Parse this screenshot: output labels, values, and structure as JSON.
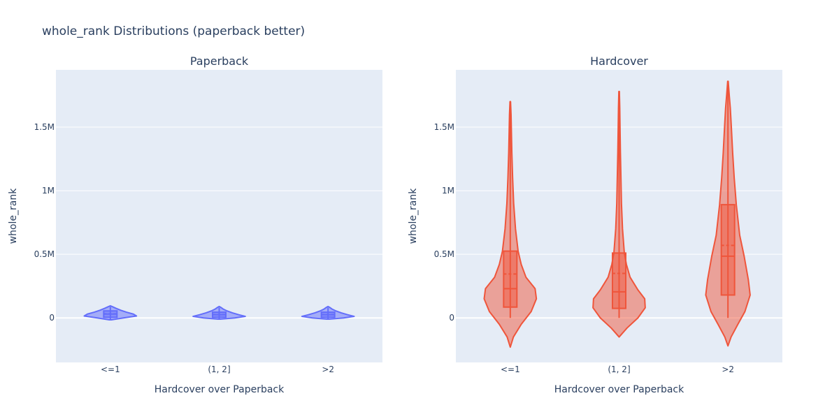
{
  "title": "whole_rank Distributions (paperback better)",
  "colors": {
    "plot_bg": "#e5ecf6",
    "grid": "#ffffff",
    "text": "#2a3f5f",
    "paperback": "#636efa",
    "hardcover": "#ef553b"
  },
  "chart_data": [
    {
      "type": "violin",
      "title": "Paperback",
      "xlabel": "Hardcover over Paperback",
      "ylabel": "whole_rank",
      "categories": [
        "<=1",
        "(1, 2]",
        ">2"
      ],
      "ylim": [
        -350000,
        1950000
      ],
      "yticks": [
        0,
        500000,
        1000000,
        1500000
      ],
      "ytick_labels": [
        "0",
        "0.5M",
        "1M",
        "1.5M"
      ],
      "color": "#636efa",
      "violins": [
        {
          "category": "<=1",
          "min": -15000,
          "max": 95000,
          "q1": 5000,
          "median": 30000,
          "q3": 55000,
          "mean": 32000,
          "whisker_low": -10000,
          "whisker_high": 85000,
          "profile": [
            [
              -15000,
              0.04
            ],
            [
              0,
              0.5
            ],
            [
              15000,
              1
            ],
            [
              30000,
              0.88
            ],
            [
              45000,
              0.62
            ],
            [
              60000,
              0.4
            ],
            [
              75000,
              0.22
            ],
            [
              88000,
              0.08
            ],
            [
              95000,
              0
            ]
          ]
        },
        {
          "category": "(1, 2]",
          "min": -10000,
          "max": 90000,
          "q1": 5000,
          "median": 25000,
          "q3": 45000,
          "mean": 27000,
          "whisker_low": -5000,
          "whisker_high": 80000,
          "profile": [
            [
              -10000,
              0.04
            ],
            [
              0,
              0.6
            ],
            [
              12000,
              1
            ],
            [
              25000,
              0.75
            ],
            [
              40000,
              0.5
            ],
            [
              55000,
              0.3
            ],
            [
              70000,
              0.15
            ],
            [
              83000,
              0.06
            ],
            [
              90000,
              0
            ]
          ]
        },
        {
          "category": ">2",
          "min": -10000,
          "max": 90000,
          "q1": 5000,
          "median": 25000,
          "q3": 45000,
          "mean": 27000,
          "whisker_low": -5000,
          "whisker_high": 80000,
          "profile": [
            [
              -10000,
              0.04
            ],
            [
              0,
              0.6
            ],
            [
              12000,
              1
            ],
            [
              25000,
              0.75
            ],
            [
              40000,
              0.5
            ],
            [
              55000,
              0.3
            ],
            [
              70000,
              0.15
            ],
            [
              83000,
              0.06
            ],
            [
              90000,
              0
            ]
          ]
        }
      ]
    },
    {
      "type": "violin",
      "title": "Hardcover",
      "xlabel": "Hardcover over Paperback",
      "ylabel": "whole_rank",
      "categories": [
        "<=1",
        "(1, 2]",
        ">2"
      ],
      "ylim": [
        -350000,
        1950000
      ],
      "yticks": [
        0,
        500000,
        1000000,
        1500000
      ],
      "ytick_labels": [
        "0",
        "0.5M",
        "1M",
        "1.5M"
      ],
      "color": "#ef553b",
      "violins": [
        {
          "category": "<=1",
          "min": -230000,
          "max": 1700000,
          "q1": 85000,
          "median": 230000,
          "q3": 525000,
          "mean": 345000,
          "whisker_low": 0,
          "whisker_high": 1700000,
          "profile": [
            [
              -230000,
              0
            ],
            [
              -150000,
              0.12
            ],
            [
              -50000,
              0.42
            ],
            [
              50000,
              0.8
            ],
            [
              150000,
              1
            ],
            [
              230000,
              0.95
            ],
            [
              320000,
              0.6
            ],
            [
              420000,
              0.42
            ],
            [
              525000,
              0.3
            ],
            [
              700000,
              0.2
            ],
            [
              900000,
              0.13
            ],
            [
              1100000,
              0.09
            ],
            [
              1300000,
              0.06
            ],
            [
              1500000,
              0.04
            ],
            [
              1600000,
              0.03
            ],
            [
              1700000,
              0.01
            ]
          ]
        },
        {
          "category": "(1, 2]",
          "min": -150000,
          "max": 1780000,
          "q1": 75000,
          "median": 205000,
          "q3": 510000,
          "mean": 350000,
          "whisker_low": 0,
          "whisker_high": 1780000,
          "profile": [
            [
              -150000,
              0
            ],
            [
              -80000,
              0.3
            ],
            [
              0,
              0.72
            ],
            [
              80000,
              1
            ],
            [
              150000,
              0.98
            ],
            [
              220000,
              0.72
            ],
            [
              320000,
              0.42
            ],
            [
              420000,
              0.28
            ],
            [
              510000,
              0.2
            ],
            [
              700000,
              0.13
            ],
            [
              900000,
              0.09
            ],
            [
              1100000,
              0.07
            ],
            [
              1300000,
              0.05
            ],
            [
              1500000,
              0.035
            ],
            [
              1650000,
              0.025
            ],
            [
              1780000,
              0.01
            ]
          ]
        },
        {
          "category": ">2",
          "min": -220000,
          "max": 1860000,
          "q1": 180000,
          "median": 485000,
          "q3": 890000,
          "mean": 570000,
          "whisker_low": 0,
          "whisker_high": 1860000,
          "profile": [
            [
              -220000,
              0
            ],
            [
              -150000,
              0.12
            ],
            [
              -50000,
              0.38
            ],
            [
              50000,
              0.65
            ],
            [
              180000,
              0.85
            ],
            [
              300000,
              0.78
            ],
            [
              485000,
              0.62
            ],
            [
              650000,
              0.45
            ],
            [
              890000,
              0.32
            ],
            [
              1100000,
              0.24
            ],
            [
              1300000,
              0.18
            ],
            [
              1500000,
              0.13
            ],
            [
              1650000,
              0.09
            ],
            [
              1750000,
              0.05
            ],
            [
              1860000,
              0.01
            ]
          ]
        }
      ]
    }
  ]
}
